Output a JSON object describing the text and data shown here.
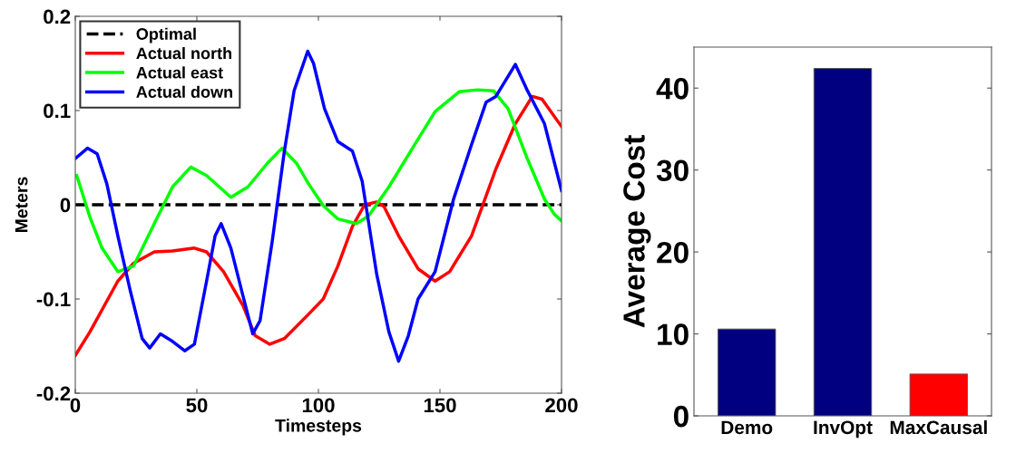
{
  "chart_data": [
    {
      "type": "line",
      "xlabel": "Timesteps",
      "ylabel": "Meters",
      "xlim": [
        0,
        200
      ],
      "ylim": [
        -0.2,
        0.2
      ],
      "xticks": [
        0,
        50,
        100,
        150,
        200
      ],
      "yticks": [
        -0.2,
        -0.1,
        0,
        0.1,
        0.2
      ],
      "grid": false,
      "legend": "top left",
      "series": [
        {
          "name": "Optimal",
          "color": "#000000",
          "line_style": "dashed",
          "x": [
            0,
            200
          ],
          "values": [
            0,
            0
          ]
        },
        {
          "name": "Actual north",
          "color": "#ff0000",
          "x": [
            0,
            6,
            17.5,
            24,
            32.5,
            40,
            49,
            54,
            61,
            69,
            74,
            80,
            86,
            96,
            102,
            108,
            114,
            119,
            124,
            127,
            133,
            141,
            148,
            154,
            163,
            173,
            181,
            188,
            192,
            200
          ],
          "values": [
            -0.16,
            -0.135,
            -0.081,
            -0.062,
            -0.05,
            -0.049,
            -0.046,
            -0.05,
            -0.071,
            -0.107,
            -0.139,
            -0.148,
            -0.142,
            -0.116,
            -0.1,
            -0.065,
            -0.023,
            0,
            0.003,
            -0.002,
            -0.033,
            -0.068,
            -0.081,
            -0.071,
            -0.033,
            0.038,
            0.086,
            0.115,
            0.112,
            0.083
          ]
        },
        {
          "name": "Actual east",
          "color": "#00ff00",
          "x": [
            0.6,
            6,
            11,
            17.5,
            24,
            32.5,
            40,
            47.5,
            54,
            64,
            71,
            79,
            85,
            91,
            96,
            102,
            108,
            115.6,
            120.6,
            129,
            138,
            148,
            158,
            165.6,
            172,
            178,
            185.6,
            193,
            197,
            200
          ],
          "values": [
            0.031,
            -0.013,
            -0.046,
            -0.071,
            -0.065,
            -0.02,
            0.019,
            0.04,
            0.031,
            0.008,
            0.019,
            0.044,
            0.06,
            0.044,
            0.022,
            -0.001,
            -0.015,
            -0.02,
            -0.012,
            0.019,
            0.057,
            0.099,
            0.12,
            0.122,
            0.121,
            0.102,
            0.051,
            0.006,
            -0.01,
            -0.017
          ]
        },
        {
          "name": "Actual down",
          "color": "#0000ff",
          "x": [
            0,
            5,
            9,
            13,
            17.5,
            22.5,
            27.5,
            30.6,
            35,
            40,
            45,
            49,
            54,
            57.5,
            60,
            64,
            69,
            73,
            76,
            81,
            86,
            90,
            95.6,
            98,
            102.5,
            108,
            114,
            118,
            124,
            129,
            133,
            137,
            141,
            148,
            155.6,
            163,
            169,
            173,
            181,
            186,
            193,
            200
          ],
          "values": [
            0.049,
            0.06,
            0.054,
            0.022,
            -0.033,
            -0.09,
            -0.142,
            -0.152,
            -0.137,
            -0.145,
            -0.155,
            -0.148,
            -0.081,
            -0.033,
            -0.02,
            -0.046,
            -0.097,
            -0.137,
            -0.123,
            -0.039,
            0.057,
            0.121,
            0.163,
            0.15,
            0.102,
            0.067,
            0.057,
            0.025,
            -0.074,
            -0.135,
            -0.166,
            -0.139,
            -0.1,
            -0.071,
            0.006,
            0.064,
            0.109,
            0.115,
            0.149,
            0.121,
            0.086,
            0.015
          ]
        }
      ]
    },
    {
      "type": "bar",
      "ylabel": "Average Cost",
      "categories": [
        "Demo",
        "InvOpt",
        "MaxCausal"
      ],
      "values": [
        10.6,
        42.4,
        5.1
      ],
      "colors": [
        "#000080",
        "#000080",
        "#ff0000"
      ],
      "ylim": [
        0,
        45
      ],
      "yticks": [
        0,
        10,
        20,
        30,
        40
      ],
      "grid": false
    }
  ]
}
